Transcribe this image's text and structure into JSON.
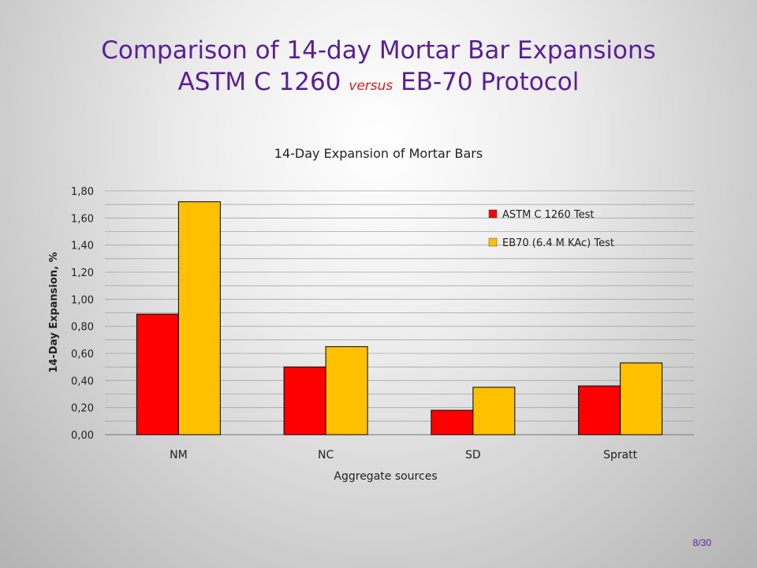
{
  "slide": {
    "title_line1": "Comparison of 14-day Mortar Bar Expansions",
    "title_line2_a": "ASTM C 1260 ",
    "title_line2_versus": "versus",
    "title_line2_b": " EB-70 Protocol",
    "page_number": "8/30"
  },
  "chart_data": {
    "type": "bar",
    "title": "14-Day Expansion of Mortar Bars",
    "xlabel": "Aggregate sources",
    "ylabel": "14-Day Expansion, %",
    "categories": [
      "NM",
      "NC",
      "SD",
      "Spratt"
    ],
    "ylim": [
      0,
      1.8
    ],
    "yticks": [
      "0,00",
      "0,20",
      "0,40",
      "0,60",
      "0,80",
      "1,00",
      "1,20",
      "1,40",
      "1,60",
      "1,80"
    ],
    "grid": true,
    "legend_position": "top-right",
    "series": [
      {
        "name": "ASTM C 1260 Test",
        "color": "#ff0000",
        "values": [
          0.89,
          0.5,
          0.18,
          0.36
        ]
      },
      {
        "name": "EB70 (6.4 M KAc) Test",
        "color": "#ffc000",
        "values": [
          1.72,
          0.65,
          0.35,
          0.53
        ]
      }
    ]
  }
}
